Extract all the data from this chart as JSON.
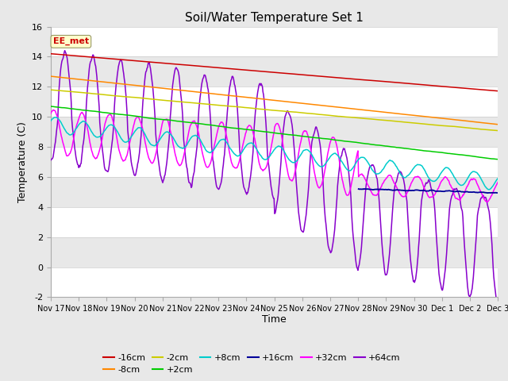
{
  "title": "Soil/Water Temperature Set 1",
  "xlabel": "Time",
  "ylabel": "Temperature (C)",
  "ylim": [
    -2,
    16
  ],
  "yticks": [
    -2,
    0,
    2,
    4,
    6,
    8,
    10,
    12,
    14,
    16
  ],
  "annotation_label": "EE_met",
  "annotation_color": "#cc0000",
  "annotation_bg": "#ffffcc",
  "series_colors": {
    "-16cm": "#cc0000",
    "-8cm": "#ff8800",
    "-2cm": "#cccc00",
    "+2cm": "#00cc00",
    "+8cm": "#00cccc",
    "+16cm": "#000099",
    "+32cm": "#ff00ff",
    "+64cm": "#8800cc"
  },
  "band_colors": [
    "#f0f0f0",
    "#e0e0e0"
  ],
  "spine_color": "#aaaaaa"
}
